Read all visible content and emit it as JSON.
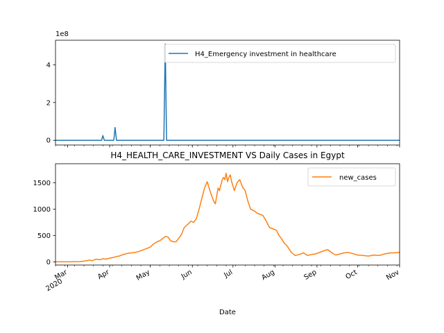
{
  "figure": {
    "title": "H4_HEALTH_CARE_INVESTMENT VS Daily Cases in Egypt",
    "xlabel": "Date",
    "x_tick_labels": [
      {
        "date": "2020-03-01",
        "label": "Mar",
        "sublabel": "2020"
      },
      {
        "date": "2020-04-01",
        "label": "Apr"
      },
      {
        "date": "2020-05-01",
        "label": "May"
      },
      {
        "date": "2020-06-01",
        "label": "Jun"
      },
      {
        "date": "2020-07-01",
        "label": "Jul"
      },
      {
        "date": "2020-08-01",
        "label": "Aug"
      },
      {
        "date": "2020-09-01",
        "label": "Sep"
      },
      {
        "date": "2020-10-01",
        "label": "Oct"
      },
      {
        "date": "2020-11-01",
        "label": "Nov"
      }
    ]
  },
  "chart_data": [
    {
      "type": "line",
      "title": "",
      "xlabel": "",
      "ylabel": "",
      "x_range": [
        "2020-02-21",
        "2020-11-01"
      ],
      "ylim": [
        -25000000,
        530000000
      ],
      "y_multiplier_label": "1e8",
      "y_ticks": [
        0,
        200000000,
        400000000
      ],
      "y_tick_labels": [
        "0",
        "2",
        "4"
      ],
      "grid": false,
      "legend": "top-right",
      "series": [
        {
          "name": "H4_Emergency investment in healthcare",
          "color": "#1f77b4",
          "x": [
            "2020-02-21",
            "2020-03-26",
            "2020-03-27",
            "2020-03-28",
            "2020-04-04",
            "2020-04-05",
            "2020-04-06",
            "2020-05-11",
            "2020-05-12",
            "2020-05-13",
            "2020-11-01"
          ],
          "y": [
            0,
            0,
            25000000,
            0,
            0,
            68000000,
            0,
            0,
            510000000,
            0,
            0
          ]
        }
      ]
    },
    {
      "type": "line",
      "title": "H4_HEALTH_CARE_INVESTMENT VS Daily Cases in Egypt",
      "xlabel": "Date",
      "ylabel": "",
      "x_range": [
        "2020-02-21",
        "2020-11-01"
      ],
      "ylim": [
        -60,
        1860
      ],
      "y_ticks": [
        0,
        500,
        1000,
        1500
      ],
      "y_tick_labels": [
        "0",
        "500",
        "1000",
        "1500"
      ],
      "grid": false,
      "legend": "top-right",
      "series": [
        {
          "name": "new_cases",
          "color": "#ff7f0e",
          "x": [
            "2020-02-21",
            "2020-03-01",
            "2020-03-10",
            "2020-03-15",
            "2020-03-17",
            "2020-03-19",
            "2020-03-22",
            "2020-03-25",
            "2020-03-27",
            "2020-03-29",
            "2020-04-01",
            "2020-04-04",
            "2020-04-06",
            "2020-04-08",
            "2020-04-10",
            "2020-04-12",
            "2020-04-14",
            "2020-04-17",
            "2020-04-20",
            "2020-04-23",
            "2020-04-26",
            "2020-04-29",
            "2020-05-01",
            "2020-05-03",
            "2020-05-06",
            "2020-05-08",
            "2020-05-10",
            "2020-05-12",
            "2020-05-14",
            "2020-05-16",
            "2020-05-18",
            "2020-05-20",
            "2020-05-22",
            "2020-05-24",
            "2020-05-26",
            "2020-05-29",
            "2020-05-31",
            "2020-06-02",
            "2020-06-04",
            "2020-06-06",
            "2020-06-08",
            "2020-06-10",
            "2020-06-12",
            "2020-06-14",
            "2020-06-16",
            "2020-06-17",
            "2020-06-18",
            "2020-06-19",
            "2020-06-20",
            "2020-06-21",
            "2020-06-22",
            "2020-06-23",
            "2020-06-24",
            "2020-06-25",
            "2020-06-26",
            "2020-06-27",
            "2020-06-28",
            "2020-06-29",
            "2020-06-30",
            "2020-07-02",
            "2020-07-04",
            "2020-07-06",
            "2020-07-08",
            "2020-07-10",
            "2020-07-12",
            "2020-07-14",
            "2020-07-17",
            "2020-07-19",
            "2020-07-21",
            "2020-07-23",
            "2020-07-25",
            "2020-07-28",
            "2020-07-30",
            "2020-08-02",
            "2020-08-04",
            "2020-08-06",
            "2020-08-08",
            "2020-08-10",
            "2020-08-13",
            "2020-08-16",
            "2020-08-19",
            "2020-08-22",
            "2020-08-25",
            "2020-08-28",
            "2020-08-31",
            "2020-09-03",
            "2020-09-06",
            "2020-09-09",
            "2020-09-12",
            "2020-09-15",
            "2020-09-18",
            "2020-09-21",
            "2020-09-24",
            "2020-09-27",
            "2020-10-01",
            "2020-10-05",
            "2020-10-09",
            "2020-10-13",
            "2020-10-17",
            "2020-10-21",
            "2020-10-25",
            "2020-10-28",
            "2020-11-01"
          ],
          "y": [
            0,
            0,
            5,
            20,
            35,
            20,
            50,
            40,
            60,
            50,
            70,
            85,
            100,
            110,
            130,
            145,
            160,
            170,
            180,
            200,
            230,
            260,
            280,
            330,
            380,
            400,
            440,
            480,
            470,
            400,
            380,
            380,
            450,
            520,
            650,
            720,
            770,
            750,
            820,
            1000,
            1200,
            1400,
            1520,
            1350,
            1200,
            1140,
            1100,
            1250,
            1400,
            1350,
            1450,
            1550,
            1600,
            1560,
            1680,
            1520,
            1600,
            1650,
            1520,
            1350,
            1500,
            1560,
            1420,
            1350,
            1150,
            1000,
            960,
            920,
            900,
            880,
            800,
            650,
            630,
            600,
            500,
            430,
            350,
            300,
            180,
            120,
            140,
            170,
            120,
            140,
            150,
            180,
            210,
            230,
            170,
            130,
            150,
            170,
            180,
            160,
            130,
            120,
            110,
            130,
            120,
            150,
            170,
            170,
            180
          ]
        }
      ]
    }
  ]
}
